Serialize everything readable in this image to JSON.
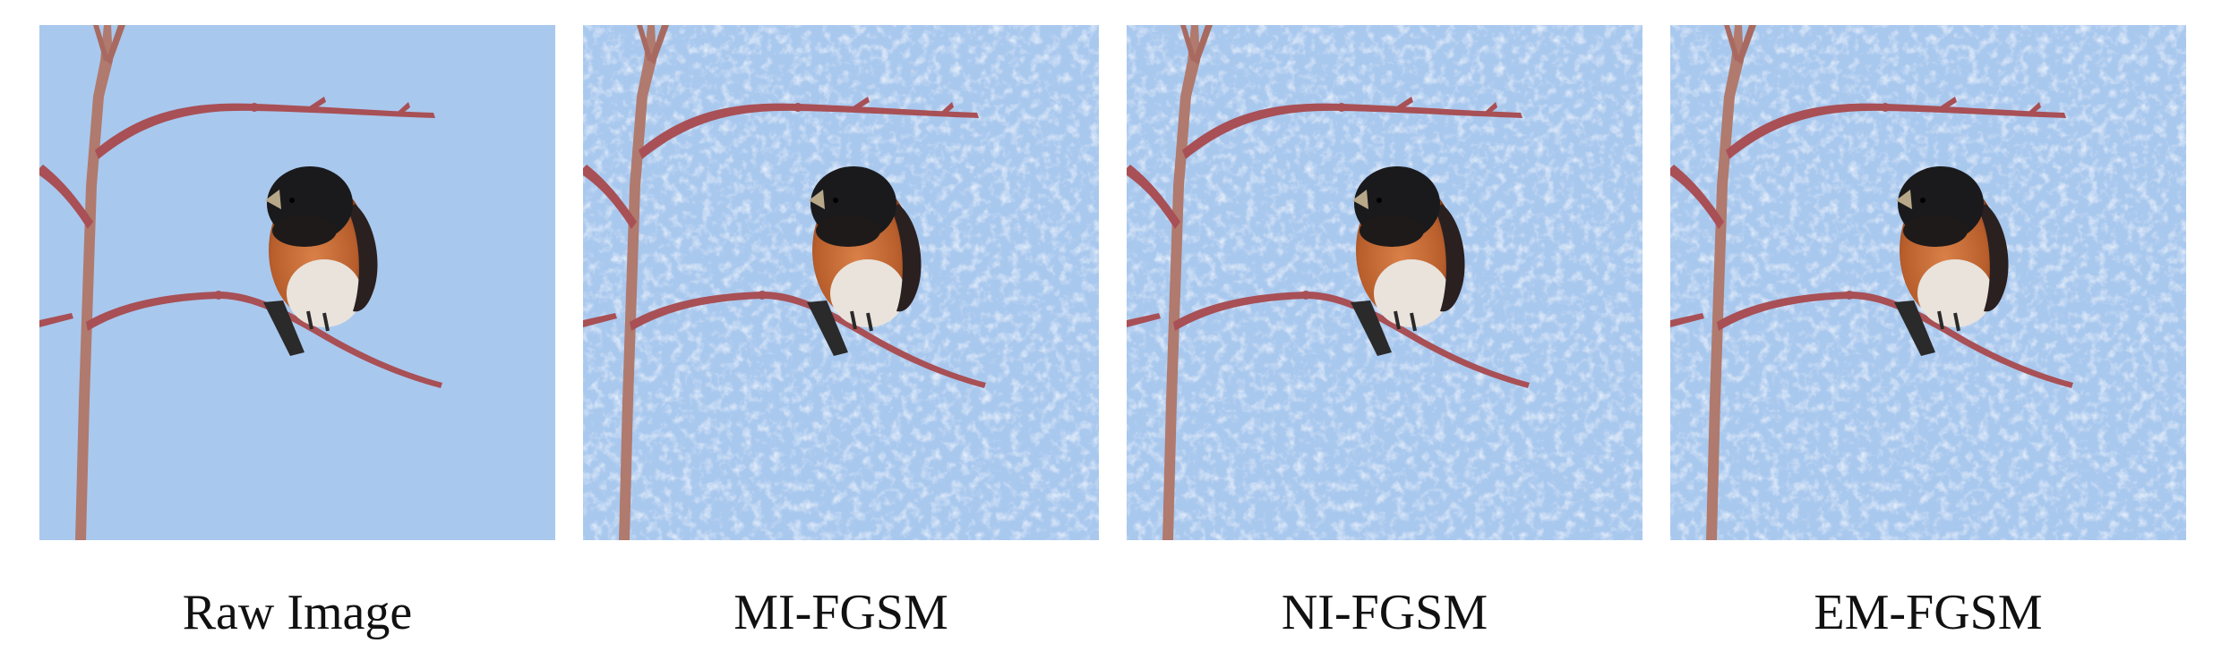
{
  "figure": {
    "panels": [
      {
        "label": "Raw Image",
        "noise": false
      },
      {
        "label": "MI-FGSM",
        "noise": true
      },
      {
        "label": "NI-FGSM",
        "noise": true
      },
      {
        "label": "EM-FGSM",
        "noise": true
      }
    ]
  },
  "colors": {
    "sky": "#a9c8ee",
    "branch": "#a85055",
    "trunk": "#b07a6e",
    "bird_head": "#1a1a1c",
    "bird_breast": "#c66a35",
    "bird_belly": "#e9e3dc"
  }
}
